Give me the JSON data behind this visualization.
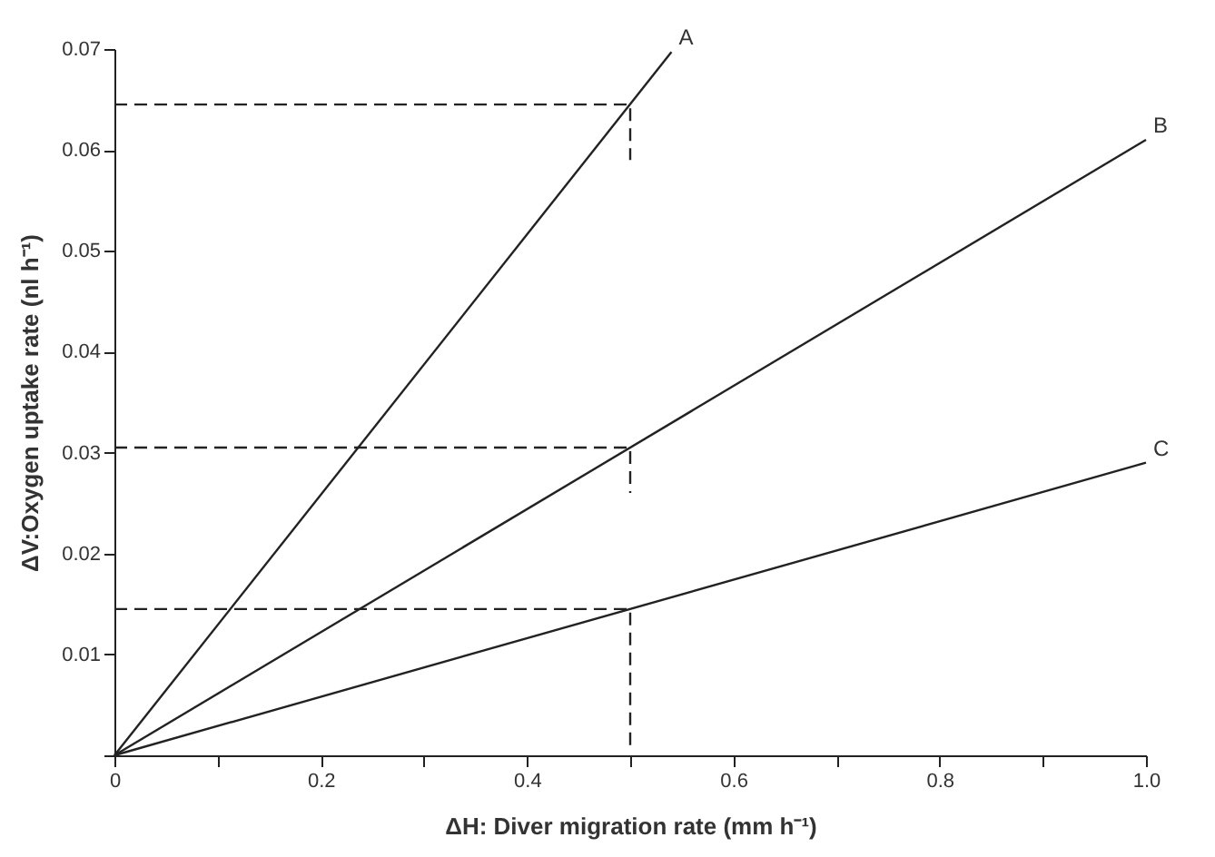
{
  "chart_data": {
    "type": "line",
    "xlabel": "ΔH: Diver migration rate (mm h⁻¹)",
    "ylabel": "ΔV:Oxygen uptake rate (nl h⁻¹)",
    "xlim": [
      0,
      1.0
    ],
    "ylim": [
      0,
      0.07
    ],
    "xticks": [
      0,
      {
        "value": 0.1,
        "label": null
      },
      0.2,
      {
        "value": 0.3,
        "label": null
      },
      0.4,
      {
        "value": 0.5,
        "label": null
      },
      0.6,
      {
        "value": 0.7,
        "label": null
      },
      0.8,
      {
        "value": 0.9,
        "label": null
      },
      {
        "value": 1.0,
        "label": "1.0"
      }
    ],
    "yticks": [
      {
        "value": 0,
        "label": null
      },
      0.01,
      0.02,
      0.03,
      0.04,
      0.05,
      0.06,
      0.07
    ],
    "marker": "none",
    "series": [
      {
        "name": "A",
        "color": "#222222",
        "x": [
          0,
          0.54
        ],
        "values": [
          0,
          0.0697
        ]
      },
      {
        "name": "B",
        "color": "#222222",
        "x": [
          0,
          1.0
        ],
        "values": [
          0,
          0.061
        ]
      },
      {
        "name": "C",
        "color": "#222222",
        "x": [
          0,
          1.0
        ],
        "values": [
          0,
          0.029
        ]
      },
      {
        "color": "#222222",
        "line_style": "dashed",
        "x": [
          0,
          0.5,
          0.5
        ],
        "values": [
          0.0645,
          0.0645,
          0.059
        ]
      },
      {
        "color": "#222222",
        "line_style": "dashed",
        "x": [
          0,
          0.5,
          0.5
        ],
        "values": [
          0.0305,
          0.0305,
          0.026
        ]
      },
      {
        "color": "#222222",
        "line_style": "dashed",
        "x": [
          0,
          0.5,
          0.5
        ],
        "values": [
          0.0145,
          0.0145,
          0.001
        ]
      }
    ]
  }
}
